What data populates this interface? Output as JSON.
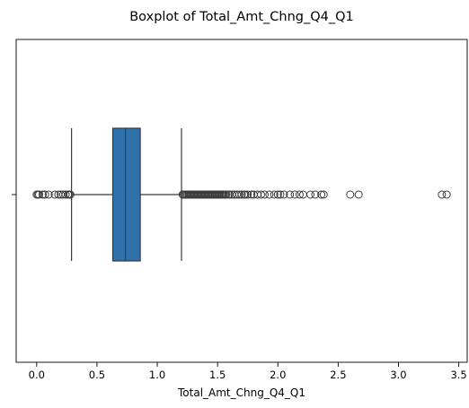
{
  "chart_data": {
    "type": "boxplot",
    "title": "Boxplot of Total_Amt_Chng_Q4_Q1",
    "xlabel": "Total_Amt_Chng_Q4_Q1",
    "ylabel": "",
    "xlim": [
      -0.17,
      3.57
    ],
    "xticks": [
      0.0,
      0.5,
      1.0,
      1.5,
      2.0,
      2.5,
      3.0,
      3.5
    ],
    "xtick_labels": [
      "0.0",
      "0.5",
      "1.0",
      "1.5",
      "2.0",
      "2.5",
      "3.0",
      "3.5"
    ],
    "yticks": [
      ""
    ],
    "grid": false,
    "box_color": "#2f72ab",
    "line_color": "#3a3a3a",
    "box": {
      "whisker_low": 0.289,
      "q1": 0.631,
      "median": 0.736,
      "q3": 0.859,
      "whisker_high": 1.201
    },
    "outliers_low": [
      0.0,
      0.01,
      0.02,
      0.05,
      0.07,
      0.1,
      0.15,
      0.18,
      0.2,
      0.22,
      0.24,
      0.26,
      0.27,
      0.28
    ],
    "outliers_high": [
      1.21,
      1.22,
      1.23,
      1.24,
      1.25,
      1.26,
      1.27,
      1.28,
      1.29,
      1.3,
      1.31,
      1.32,
      1.33,
      1.34,
      1.35,
      1.36,
      1.37,
      1.38,
      1.39,
      1.4,
      1.41,
      1.42,
      1.43,
      1.44,
      1.45,
      1.46,
      1.47,
      1.48,
      1.49,
      1.5,
      1.51,
      1.52,
      1.53,
      1.54,
      1.55,
      1.56,
      1.57,
      1.59,
      1.6,
      1.62,
      1.64,
      1.66,
      1.68,
      1.7,
      1.72,
      1.73,
      1.75,
      1.78,
      1.8,
      1.83,
      1.86,
      1.89,
      1.93,
      1.97,
      2.0,
      2.02,
      2.05,
      2.1,
      2.14,
      2.18,
      2.21,
      2.27,
      2.31,
      2.36,
      2.38,
      2.6,
      2.67,
      3.36,
      3.4
    ]
  }
}
